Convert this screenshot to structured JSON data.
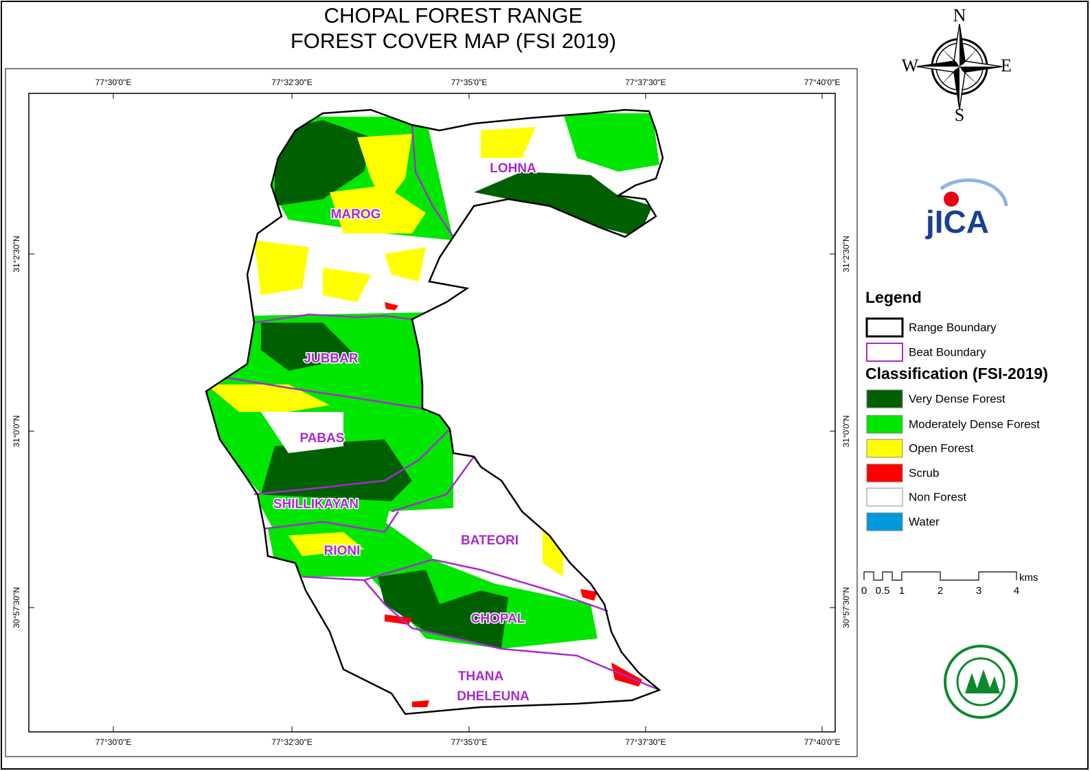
{
  "title": [
    "CHOPAL FOREST RANGE",
    "FOREST COVER MAP (FSI 2019)"
  ],
  "compass": {
    "n": "N",
    "s": "S",
    "e": "E",
    "w": "W"
  },
  "logo": "jICA",
  "grid": {
    "longitudes": [
      "77°30'0\"E",
      "77°32'30\"E",
      "77°35'0\"E",
      "77°37'30\"E",
      "77°40'0\"E"
    ],
    "latitudes": [
      "31°2'30\"N",
      "31°0'0\"N",
      "30°57'30\"N"
    ]
  },
  "beats": [
    {
      "lines": [
        "LOHNA"
      ]
    },
    {
      "lines": [
        "MAROG"
      ]
    },
    {
      "lines": [
        "JUBBAR"
      ]
    },
    {
      "lines": [
        "PABAS"
      ]
    },
    {
      "lines": [
        "SHILLIKAYAN"
      ]
    },
    {
      "lines": [
        "RIONI"
      ]
    },
    {
      "lines": [
        "BATEORI"
      ]
    },
    {
      "lines": [
        "CHOPAL"
      ]
    },
    {
      "lines": [
        "THANA",
        "DHELEUNA"
      ]
    }
  ],
  "legend": {
    "title": "Legend",
    "boundaries": [
      {
        "label": "Range Boundary",
        "stroke": "#000000"
      },
      {
        "label": "Beat Boundary",
        "stroke": "#a82ad0"
      }
    ],
    "classification_title": "Classification (FSI-2019)",
    "classes": [
      {
        "label": "Very Dense Forest",
        "color": "#005f00"
      },
      {
        "label": "Moderately Dense Forest",
        "color": "#00e600"
      },
      {
        "label": "Open Forest",
        "color": "#ffff00"
      },
      {
        "label": "Scrub",
        "color": "#ff0000"
      },
      {
        "label": "Non Forest",
        "color": "#ffffff"
      },
      {
        "label": "Water",
        "color": "#0099dd"
      }
    ]
  },
  "scale": {
    "labels": [
      "0",
      "0.5",
      "1",
      "2",
      "3",
      "4"
    ],
    "unit": "kms"
  }
}
